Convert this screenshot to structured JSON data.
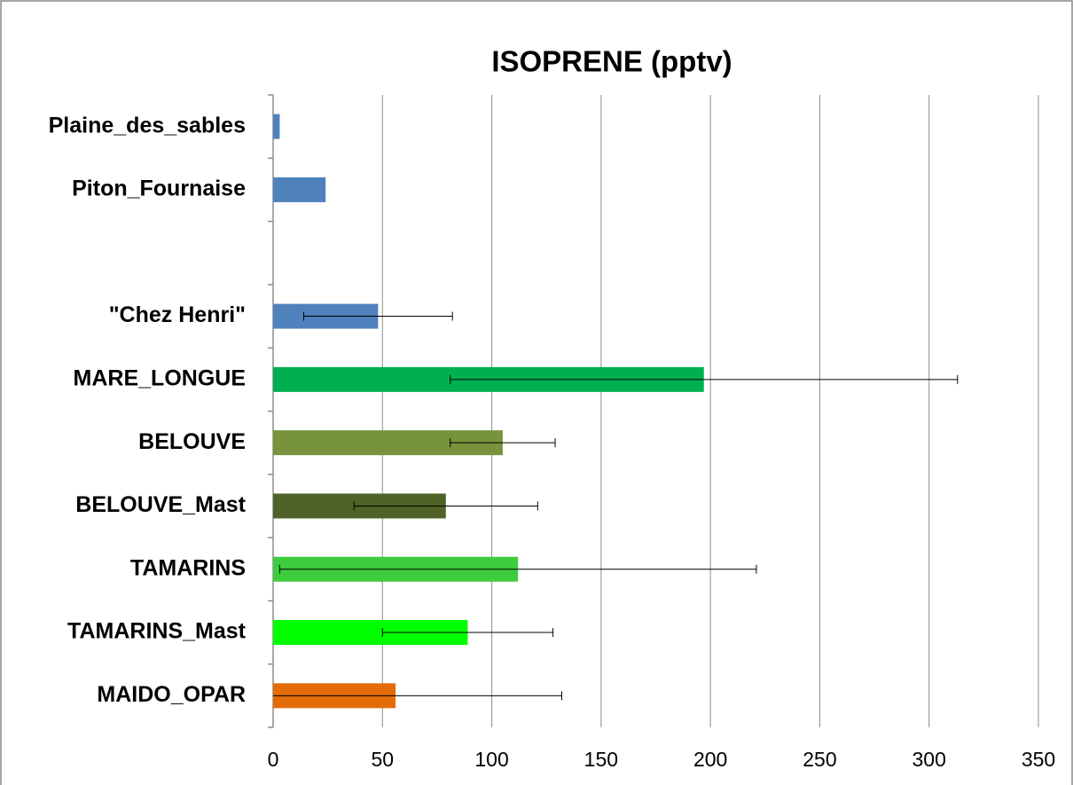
{
  "chart_data": {
    "type": "hbar",
    "title": "ISOPRENE (pptv)",
    "categories": [
      "Plaine_des_sables",
      "Piton_Fournaise",
      null,
      "\"Chez Henri\"",
      "MARE_LONGUE",
      "BELOUVE",
      "BELOUVE_Mast",
      "TAMARINS",
      "TAMARINS_Mast",
      "MAIDO_OPAR"
    ],
    "values": [
      3,
      24,
      null,
      48,
      197,
      105,
      79,
      112,
      89,
      56
    ],
    "errors": [
      null,
      null,
      null,
      34,
      116,
      24,
      42,
      109,
      39,
      76
    ],
    "colors": [
      "#4f81bd",
      "#4f81bd",
      null,
      "#4f81bd",
      "#00b050",
      "#77933c",
      "#4f6228",
      "#3dcc3d",
      "#00ff00",
      "#e36c09"
    ],
    "xlim": [
      0,
      350
    ],
    "xticks": [
      0,
      50,
      100,
      150,
      200,
      250,
      300,
      350
    ],
    "grid": true
  }
}
